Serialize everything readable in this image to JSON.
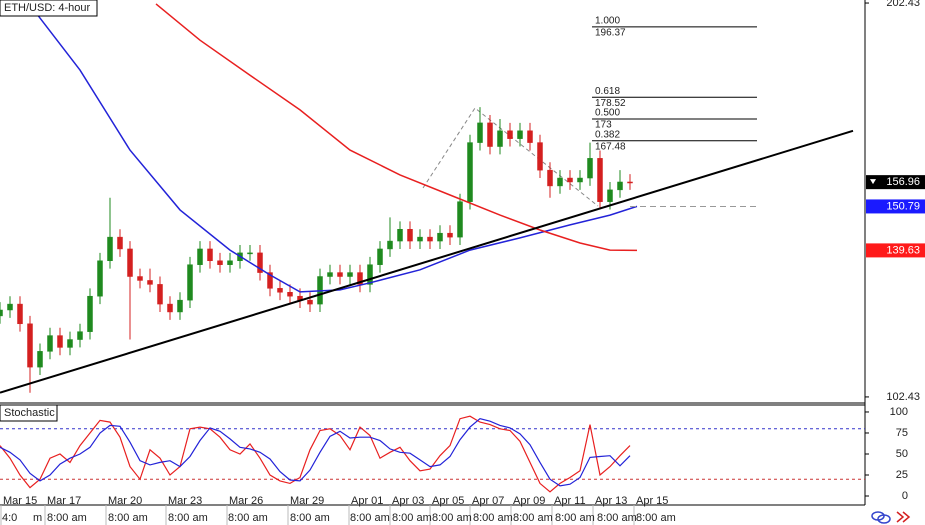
{
  "chart_data": [
    {
      "type": "candlestick",
      "title": "ETH/USD: 4-hour",
      "x": [
        -0.9,
        -0.4,
        0.1,
        0.6,
        1.1,
        1.6,
        2.1,
        2.6,
        3.1,
        3.6,
        4.1,
        4.6,
        5.1,
        5.6,
        6.1,
        6.6,
        7.1,
        7.6,
        8.1,
        8.6,
        9.1,
        9.6,
        10.1,
        10.6,
        11.1,
        11.6,
        12.1,
        12.6,
        13.1,
        13.6,
        14.1,
        14.6,
        15.1,
        15.6,
        16.1,
        16.6,
        17.1,
        17.6,
        18.1,
        18.6,
        19.1,
        19.6,
        20.1,
        20.6,
        21.1,
        21.6,
        22.1,
        22.6,
        23.1,
        23.6,
        24.1,
        24.6,
        25.1,
        25.6,
        26.1,
        26.6,
        27.1,
        27.6,
        28.1,
        28.6,
        29.1,
        29.6,
        30.1,
        30.6
      ],
      "open": [
        123,
        124.5,
        126,
        121,
        110,
        114,
        118,
        115,
        117,
        119,
        128,
        137,
        143,
        140,
        133,
        132,
        131,
        126,
        124,
        127,
        136,
        140,
        137,
        136,
        137,
        139,
        139,
        134,
        130,
        129,
        128,
        127,
        126,
        133,
        134,
        133,
        134,
        131,
        136,
        140,
        142,
        145,
        142,
        143,
        142,
        144,
        143,
        152,
        167,
        172,
        166,
        170,
        168,
        170,
        167,
        160,
        156,
        158,
        157,
        158,
        163,
        152,
        155,
        157
      ],
      "high": [
        126.5,
        128,
        128,
        123,
        116,
        120,
        120,
        119,
        121,
        130,
        139,
        153,
        145,
        142,
        135,
        135,
        133,
        128,
        129,
        138,
        142,
        142,
        139,
        139,
        141,
        141,
        141,
        136,
        132,
        131,
        130,
        129,
        135,
        136,
        136,
        136,
        136,
        138,
        142,
        148,
        147,
        147,
        145,
        145,
        146,
        146,
        154,
        169,
        176,
        174,
        173,
        172,
        172,
        172,
        169,
        162,
        160,
        160,
        160,
        167,
        165,
        157,
        160,
        159
      ],
      "low": [
        121,
        122.5,
        119,
        103.5,
        108,
        112,
        113,
        113,
        115,
        117,
        126,
        135,
        138,
        117,
        130,
        129,
        124,
        122,
        122,
        125,
        134,
        135,
        134,
        134,
        135,
        137,
        132,
        128,
        127,
        126,
        125,
        124,
        124,
        131,
        131,
        131,
        129,
        129,
        134,
        138,
        140,
        140,
        140,
        140,
        140,
        141,
        141,
        150,
        165,
        164,
        164,
        166,
        166,
        165,
        158,
        153,
        154,
        155,
        155,
        156,
        150,
        150,
        153,
        155
      ],
      "close": [
        124.5,
        126,
        121,
        110,
        114,
        118,
        115,
        117,
        119,
        128,
        137,
        143,
        140,
        133,
        132,
        131,
        126,
        124,
        127,
        136,
        140,
        137,
        136,
        137,
        139,
        139,
        134,
        130,
        129,
        128,
        127,
        126,
        133,
        134,
        133,
        134,
        131,
        136,
        140,
        142,
        145,
        142,
        143,
        142,
        144,
        143,
        152,
        167,
        172,
        166,
        170,
        168,
        170,
        167,
        160,
        156,
        158,
        157,
        158,
        163,
        152,
        155,
        157,
        156.96
      ],
      "up_color": "#1f8a1f",
      "down_color": "#d42020",
      "xlim": [
        -0.9,
        42.35
      ],
      "ylim": [
        101.65,
        203.2
      ],
      "yticks": [
        102.43,
        202.43
      ],
      "lines": [
        {
          "color": "#2323d8",
          "x": [
            0.6,
            3.1,
            5.6,
            8.1,
            10.6,
            12.6,
            14.1,
            16.1,
            17.6,
            20.1,
            22.6,
            25.1,
            27.6,
            29.6,
            30.95
          ],
          "values": [
            201.9,
            185.4,
            165.1,
            149.9,
            139.7,
            133.4,
            129.1,
            129.6,
            131.4,
            134.7,
            139.7,
            142.8,
            146.1,
            148.6,
            150.79
          ]
        },
        {
          "color": "#e82020",
          "x": [
            6.9,
            9.1,
            11.6,
            14.1,
            16.6,
            19.1,
            21.6,
            24.1,
            26.1,
            28.1,
            29.6,
            30.95
          ],
          "values": [
            202.2,
            193.0,
            184.1,
            175.3,
            165.1,
            158.8,
            153.7,
            148.6,
            144.8,
            141.5,
            139.7,
            139.63
          ]
        },
        {
          "color": "#000000",
          "x": [
            -0.9,
            41.75
          ],
          "values": [
            103.5,
            170.0
          ]
        }
      ],
      "fib_levels": [
        {
          "label": "1.000",
          "value": 196.37
        },
        {
          "label": "0.618",
          "value": 178.52
        },
        {
          "label": "0.500",
          "value": 173.0
        },
        {
          "label": "0.382",
          "value": 167.48
        }
      ],
      "price_tags": [
        {
          "value": 156.96,
          "color": "#000000"
        },
        {
          "value": 150.79,
          "color": "#1a1aff"
        },
        {
          "value": 139.63,
          "color": "#ff1a1a"
        }
      ]
    },
    {
      "type": "line",
      "title": "Stochastic",
      "x": [
        -0.9,
        -0.4,
        0.1,
        0.6,
        1.1,
        1.6,
        2.1,
        2.6,
        3.1,
        3.6,
        4.1,
        4.6,
        5.1,
        5.6,
        6.1,
        6.6,
        7.1,
        7.6,
        8.1,
        8.6,
        9.1,
        9.6,
        10.1,
        10.6,
        11.1,
        11.6,
        12.1,
        12.6,
        13.1,
        13.6,
        14.1,
        14.6,
        15.1,
        15.6,
        16.1,
        16.6,
        17.1,
        17.6,
        18.1,
        18.6,
        19.1,
        19.6,
        20.1,
        20.6,
        21.1,
        21.6,
        22.1,
        22.6,
        23.1,
        23.6,
        24.1,
        24.6,
        25.1,
        25.6,
        26.1,
        26.6,
        27.1,
        27.6,
        28.1,
        28.6,
        29.1,
        29.6,
        30.1,
        30.6
      ],
      "series": [
        {
          "color": "#e82020",
          "values": [
            60,
            45,
            25,
            10,
            20,
            45,
            50,
            40,
            60,
            75,
            90,
            88,
            70,
            35,
            20,
            55,
            45,
            25,
            35,
            80,
            82,
            80,
            70,
            55,
            50,
            62,
            45,
            25,
            18,
            15,
            22,
            55,
            78,
            80,
            72,
            55,
            82,
            72,
            45,
            52,
            58,
            42,
            30,
            32,
            48,
            60,
            92,
            95,
            88,
            85,
            80,
            78,
            65,
            40,
            15,
            5,
            15,
            22,
            30,
            85,
            25,
            35,
            48,
            60
          ]
        },
        {
          "color": "#2323d8",
          "values": [
            58,
            52,
            43,
            27,
            18,
            25,
            38,
            45,
            50,
            58,
            75,
            84,
            83,
            64,
            42,
            37,
            40,
            42,
            35,
            47,
            66,
            81,
            77,
            68,
            58,
            56,
            52,
            44,
            29,
            19,
            18,
            31,
            52,
            71,
            77,
            69,
            70,
            70,
            66,
            56,
            52,
            51,
            43,
            35,
            37,
            47,
            67,
            82,
            92,
            89,
            84,
            81,
            74,
            61,
            40,
            20,
            12,
            14,
            22,
            46,
            47,
            48,
            36,
            48
          ]
        }
      ],
      "levels": [
        {
          "value": 80,
          "color": "#3333cc"
        },
        {
          "value": 20,
          "color": "#cc3333"
        }
      ],
      "xlim": [
        -0.9,
        42.35
      ],
      "ylim": [
        -10.7,
        108.3
      ],
      "yticks": [
        0,
        25,
        50,
        75,
        100
      ],
      "xticks": [
        {
          "value": -0.75,
          "label": "Mar 15"
        },
        {
          "value": 1.45,
          "label": "Mar 17"
        },
        {
          "value": 4.5,
          "label": "Mar 20"
        },
        {
          "value": 7.5,
          "label": "Mar 23"
        },
        {
          "value": 10.55,
          "label": "Mar 26"
        },
        {
          "value": 13.6,
          "label": "Mar 29"
        },
        {
          "value": 16.65,
          "label": "Apr 01"
        },
        {
          "value": 18.7,
          "label": "Apr 03"
        },
        {
          "value": 20.7,
          "label": "Apr 05"
        },
        {
          "value": 22.7,
          "label": "Apr 07"
        },
        {
          "value": 24.75,
          "label": "Apr 09"
        },
        {
          "value": 26.8,
          "label": "Apr 11"
        },
        {
          "value": 28.85,
          "label": "Apr 13"
        },
        {
          "value": 30.9,
          "label": "Apr 15"
        }
      ],
      "time_labels": [
        {
          "value": -0.8,
          "label": "4:0"
        },
        {
          "value": 0.75,
          "label": "m"
        },
        {
          "value": 1.45,
          "label": "8:00 am"
        },
        {
          "value": 4.5,
          "label": "8:00 am"
        },
        {
          "value": 7.5,
          "label": "8:00 am"
        },
        {
          "value": 10.5,
          "label": "8:00 am"
        },
        {
          "value": 13.6,
          "label": "8:00 am"
        },
        {
          "value": 16.6,
          "label": "8:00 am"
        },
        {
          "value": 18.7,
          "label": "8:00 am"
        },
        {
          "value": 20.7,
          "label": "8:00 am"
        },
        {
          "value": 22.75,
          "label": "8:00 am"
        },
        {
          "value": 24.75,
          "label": "8:00 am"
        },
        {
          "value": 26.85,
          "label": "8:00 am"
        },
        {
          "value": 28.95,
          "label": "8:00 am"
        },
        {
          "value": 30.9,
          "label": "8:00 am"
        }
      ]
    }
  ]
}
